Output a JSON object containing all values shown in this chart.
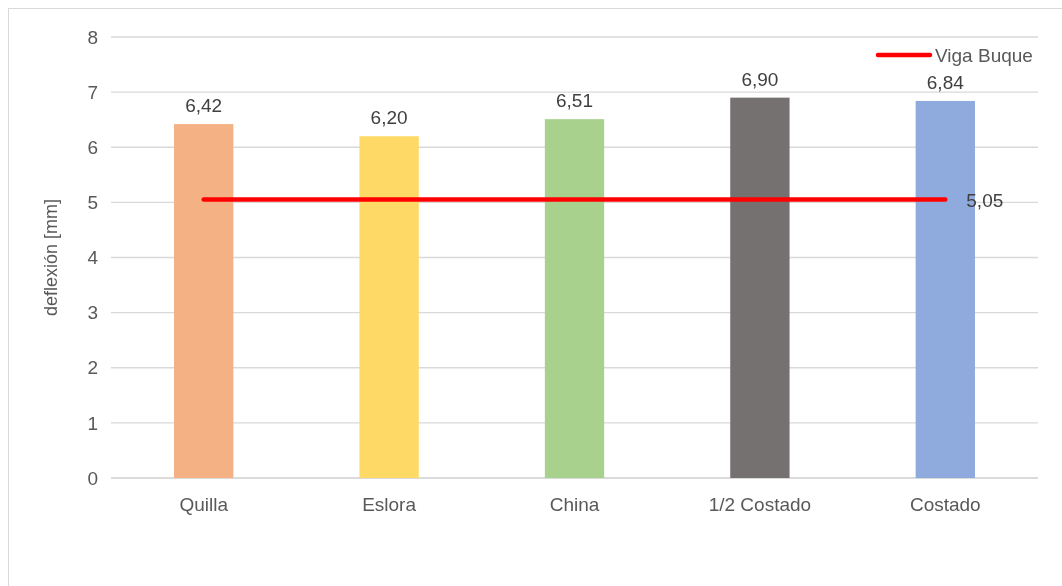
{
  "chart_data": {
    "type": "bar",
    "ylabel": "deflexión [mm]",
    "categories": [
      "Quilla",
      "Eslora",
      "China",
      "1/2 Costado",
      "Costado"
    ],
    "series": [
      {
        "colors": [
          "#f4b183",
          "#ffd966",
          "#a9d18e",
          "#767171",
          "#8faadc"
        ],
        "values": [
          6.42,
          6.2,
          6.51,
          6.9,
          6.84
        ],
        "value_labels": [
          "6,42",
          "6,20",
          "6,51",
          "6,90",
          "6,84"
        ]
      },
      {
        "type": "line",
        "name": "Viga Buque",
        "color": "#ff0000",
        "values": [
          5.05,
          5.05,
          5.05,
          5.05,
          5.05
        ],
        "value_labels": [
          null,
          null,
          null,
          null,
          "5,05"
        ]
      }
    ],
    "ylim": [
      0,
      8
    ],
    "yticks": [
      0,
      1,
      2,
      3,
      4,
      5,
      6,
      7,
      8
    ],
    "grid": "y",
    "legend": "top right"
  }
}
